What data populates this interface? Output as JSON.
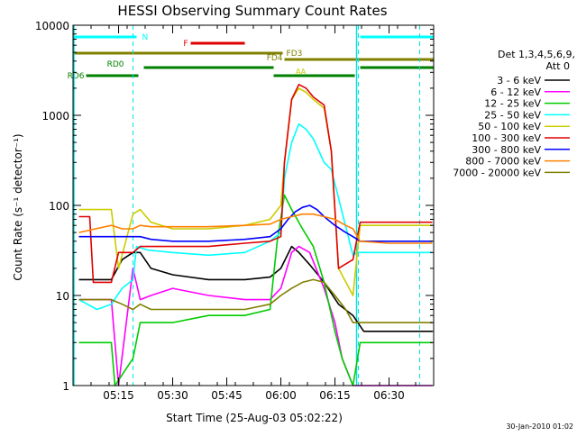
{
  "colors": {
    "axis": "#000000",
    "bar_N": "#00ffff",
    "bar_F": "#e00000",
    "bar_FD": "#808000",
    "bar_RD": "#008000",
    "eclipse": "#00e0e0"
  },
  "chart_data": {
    "type": "line",
    "title": "HESSI Observing Summary Count Rates",
    "xlabel": "Start Time (25-Aug-03 05:02:22)",
    "ylabel": "Count Rate (s⁻¹ detector⁻¹)",
    "yscale": "log",
    "ylim": [
      1,
      10000
    ],
    "xlim": [
      "05:02:22",
      "06:42:22"
    ],
    "x_ticks": [
      "05:15",
      "05:30",
      "05:45",
      "06:00",
      "06:15",
      "06:30"
    ],
    "y_ticks": [
      "1",
      "10",
      "100",
      "1000",
      "10000"
    ],
    "legend_header": [
      "Det 1,3,4,5,6,9,",
      "Att 0"
    ],
    "legend_position": "right",
    "footer_date": "30-Jan-2010 01:02",
    "eclipse_times": [
      "05:19:00",
      "06:21:30",
      "06:38:30"
    ],
    "attenuator_mark": "AA",
    "flag_bars": [
      {
        "label": "N",
        "color": "#00ffff",
        "segments": [
          [
            "05:02:22",
            "05:20:00"
          ],
          [
            "06:22:00",
            "06:42:22"
          ]
        ]
      },
      {
        "label": "F",
        "color": "#e00000",
        "segments": [
          [
            "05:35:00",
            "05:50:00"
          ]
        ]
      },
      {
        "label": "FD3",
        "color": "#808000",
        "segments": [
          [
            "05:02:22",
            "06:00:30"
          ]
        ]
      },
      {
        "label": "FD4",
        "color": "#808000",
        "segments": [
          [
            "06:01:00",
            "06:42:22"
          ]
        ]
      },
      {
        "label": "RD0",
        "color": "#008000",
        "segments": [
          [
            "05:22:00",
            "05:58:00"
          ],
          [
            "06:22:00",
            "06:42:22"
          ]
        ]
      },
      {
        "label": "RD6",
        "color": "#008000",
        "segments": [
          [
            "05:06:00",
            "05:20:30"
          ],
          [
            "05:58:00",
            "06:20:30"
          ]
        ]
      }
    ],
    "series": [
      {
        "name": "3 - 6 keV",
        "color": "#000000",
        "x": [
          "05:04",
          "05:13",
          "05:16",
          "05:19",
          "05:21",
          "05:24",
          "05:30",
          "05:40",
          "05:50",
          "05:57",
          "06:00",
          "06:03",
          "06:05",
          "06:08",
          "06:12",
          "06:16",
          "06:20",
          "06:23",
          "06:30",
          "06:42"
        ],
        "y": [
          15,
          15,
          25,
          30,
          30,
          20,
          17,
          15,
          15,
          16,
          20,
          35,
          30,
          22,
          14,
          8,
          6,
          4,
          4,
          4
        ]
      },
      {
        "name": "6 - 12 keV",
        "color": "#ff00ff",
        "x": [
          "05:04",
          "05:13",
          "05:15",
          "05:19",
          "05:21",
          "05:24",
          "05:30",
          "05:40",
          "05:50",
          "05:57",
          "06:00",
          "06:03",
          "06:05",
          "06:08",
          "06:12",
          "06:15",
          "06:17",
          "06:20",
          "06:30",
          "06:42"
        ],
        "y": [
          9,
          9,
          1,
          20,
          9,
          10,
          12,
          10,
          9,
          9,
          12,
          30,
          35,
          30,
          12,
          5,
          2,
          1,
          1,
          1
        ]
      },
      {
        "name": "12 - 25 keV",
        "color": "#00cc00",
        "x": [
          "05:04",
          "05:13",
          "05:14",
          "05:19",
          "05:21",
          "05:24",
          "05:30",
          "05:40",
          "05:50",
          "05:57",
          "05:59",
          "06:01",
          "06:03",
          "06:06",
          "06:09",
          "06:12",
          "06:15",
          "06:17",
          "06:20",
          "06:22",
          "06:30",
          "06:42"
        ],
        "y": [
          3,
          3,
          1,
          2,
          5,
          5,
          5,
          6,
          6,
          7,
          40,
          130,
          90,
          55,
          35,
          14,
          4,
          2,
          1,
          3,
          3,
          3
        ]
      },
      {
        "name": "25 - 50 keV",
        "color": "#00ffff",
        "x": [
          "05:04",
          "05:09",
          "05:13",
          "05:16",
          "05:19",
          "05:20",
          "05:23",
          "05:30",
          "05:40",
          "05:50",
          "05:57",
          "06:00",
          "06:01",
          "06:03",
          "06:05",
          "06:07",
          "06:09",
          "06:12",
          "06:14",
          "06:20",
          "06:21",
          "06:23",
          "06:30",
          "06:42"
        ],
        "y": [
          9,
          7,
          8,
          12,
          15,
          35,
          32,
          30,
          28,
          30,
          40,
          50,
          200,
          500,
          800,
          700,
          550,
          300,
          250,
          28,
          30,
          30,
          30,
          30
        ]
      },
      {
        "name": "50 - 100 keV",
        "color": "#cccc00",
        "x": [
          "05:04",
          "05:13",
          "05:15",
          "05:19",
          "05:21",
          "05:24",
          "05:30",
          "05:40",
          "05:50",
          "05:57",
          "06:00",
          "06:01",
          "06:03",
          "06:05",
          "06:07",
          "06:09",
          "06:12",
          "06:14",
          "06:16",
          "06:20",
          "06:22",
          "06:30",
          "06:42"
        ],
        "y": [
          90,
          90,
          20,
          80,
          90,
          65,
          55,
          55,
          60,
          70,
          100,
          300,
          1500,
          2000,
          1800,
          1500,
          1200,
          400,
          20,
          10,
          60,
          60,
          60
        ]
      },
      {
        "name": "100 - 300 keV",
        "color": "#e00000",
        "x": [
          "05:04",
          "05:07",
          "05:08",
          "05:13",
          "05:15",
          "05:19",
          "05:21",
          "05:24",
          "05:30",
          "05:40",
          "05:50",
          "05:57",
          "06:00",
          "06:01",
          "06:03",
          "06:05",
          "06:07",
          "06:09",
          "06:12",
          "06:14",
          "06:16",
          "06:20",
          "06:22",
          "06:30",
          "06:42"
        ],
        "y": [
          75,
          75,
          14,
          14,
          30,
          30,
          35,
          35,
          35,
          35,
          38,
          40,
          45,
          300,
          1500,
          2200,
          2000,
          1600,
          1300,
          400,
          20,
          25,
          65,
          65,
          65
        ]
      },
      {
        "name": "300 - 800 keV",
        "color": "#0000ff",
        "x": [
          "05:04",
          "05:13",
          "05:16",
          "05:19",
          "05:21",
          "05:24",
          "05:30",
          "05:40",
          "05:50",
          "05:57",
          "06:00",
          "06:02",
          "06:04",
          "06:06",
          "06:08",
          "06:10",
          "06:12",
          "06:15",
          "06:18",
          "06:20",
          "06:22",
          "06:30",
          "06:42"
        ],
        "y": [
          45,
          45,
          45,
          45,
          45,
          42,
          40,
          40,
          42,
          45,
          55,
          70,
          85,
          95,
          100,
          90,
          75,
          60,
          50,
          45,
          40,
          40,
          40
        ]
      },
      {
        "name": "800 - 7000 keV",
        "color": "#ff8000",
        "x": [
          "05:04",
          "05:13",
          "05:16",
          "05:19",
          "05:21",
          "05:24",
          "05:30",
          "05:40",
          "05:50",
          "05:57",
          "06:00",
          "06:03",
          "06:06",
          "06:09",
          "06:12",
          "06:15",
          "06:18",
          "06:20",
          "06:22",
          "06:30",
          "06:42"
        ],
        "y": [
          50,
          60,
          55,
          55,
          60,
          58,
          58,
          58,
          60,
          62,
          70,
          75,
          80,
          80,
          75,
          70,
          60,
          55,
          40,
          38,
          38
        ]
      },
      {
        "name": "7000 - 20000 keV",
        "color": "#808000",
        "x": [
          "05:04",
          "05:13",
          "05:16",
          "05:19",
          "05:21",
          "05:24",
          "05:30",
          "05:40",
          "05:50",
          "05:57",
          "06:00",
          "06:03",
          "06:06",
          "06:09",
          "06:12",
          "06:15",
          "06:18",
          "06:20",
          "06:22",
          "06:30",
          "06:42"
        ],
        "y": [
          9,
          9,
          8,
          7,
          8,
          7,
          7,
          7,
          7,
          8,
          10,
          12,
          14,
          15,
          14,
          10,
          7,
          5,
          5,
          5,
          5
        ]
      }
    ]
  }
}
